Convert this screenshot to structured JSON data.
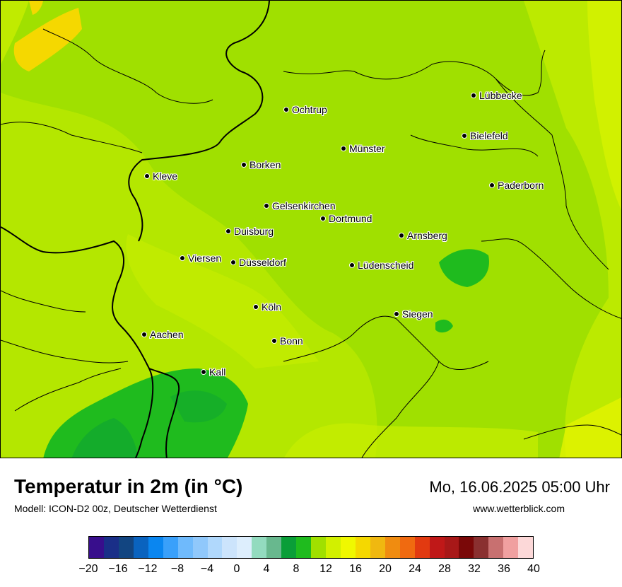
{
  "map": {
    "cities": [
      {
        "name": "Lübbecke"
      },
      {
        "name": "Ochtrup"
      },
      {
        "name": "Bielefeld"
      },
      {
        "name": "Münster"
      },
      {
        "name": "Borken"
      },
      {
        "name": "Kleve"
      },
      {
        "name": "Paderborn"
      },
      {
        "name": "Gelsenkirchen"
      },
      {
        "name": "Dortmund"
      },
      {
        "name": "Duisburg"
      },
      {
        "name": "Arnsberg"
      },
      {
        "name": "Viersen"
      },
      {
        "name": "Düsseldorf"
      },
      {
        "name": "Lüdenscheid"
      },
      {
        "name": "Köln"
      },
      {
        "name": "Siegen"
      },
      {
        "name": "Aachen"
      },
      {
        "name": "Bonn"
      },
      {
        "name": "Kall"
      }
    ]
  },
  "header": {
    "title": "Temperatur in 2m (in °C)",
    "subtitle": "Modell: ICON-D2 00z, Deutscher Wetterdienst",
    "datetime": "Mo, 16.06.2025 05:00 Uhr",
    "website": "www.wetterblick.com"
  },
  "legend": {
    "colors": [
      "#380e8c",
      "#1a2f88",
      "#124581",
      "#0a63bf",
      "#0a86f0",
      "#3aa0fa",
      "#6fbafc",
      "#90c8fb",
      "#b0d8fc",
      "#cce4fc",
      "#ddeefd",
      "#93dbbf",
      "#68b88e",
      "#0a9e38",
      "#1fbb1e",
      "#a0e000",
      "#d2f000",
      "#f0f800",
      "#f5d800",
      "#f0b810",
      "#f08c10",
      "#f06a10",
      "#e23a10",
      "#c01818",
      "#a81818",
      "#7a0808",
      "#8a3030",
      "#c87070",
      "#f0a0a0",
      "#fcd8d8"
    ],
    "tick_labels": [
      "−20",
      "−16",
      "−12",
      "−8",
      "−4",
      "0",
      "4",
      "8",
      "12",
      "16",
      "20",
      "24",
      "28",
      "32",
      "36",
      "40"
    ]
  }
}
